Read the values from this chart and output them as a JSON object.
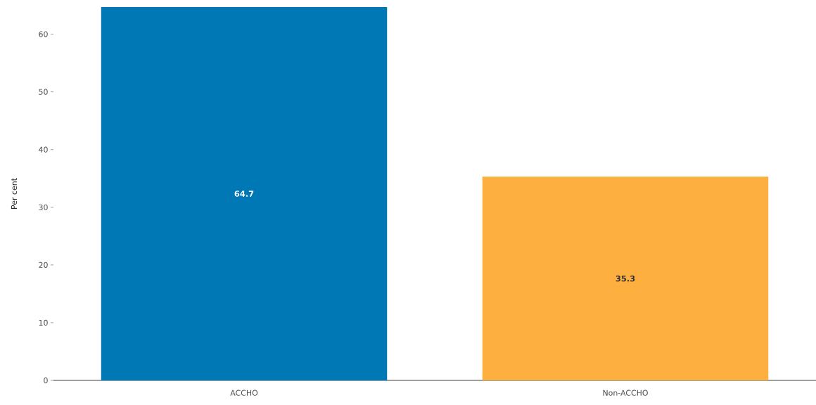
{
  "chart_data": {
    "type": "bar",
    "ylabel": "Per cent",
    "categories": [
      "ACCHO",
      "Non-ACCHO"
    ],
    "values": [
      64.7,
      35.3
    ],
    "colors": [
      "#0078b5",
      "#fdaf3f"
    ],
    "ylim": [
      0,
      64.7
    ],
    "yticks": [
      0,
      10,
      20,
      30,
      40,
      50,
      60
    ],
    "data_labels": true
  }
}
